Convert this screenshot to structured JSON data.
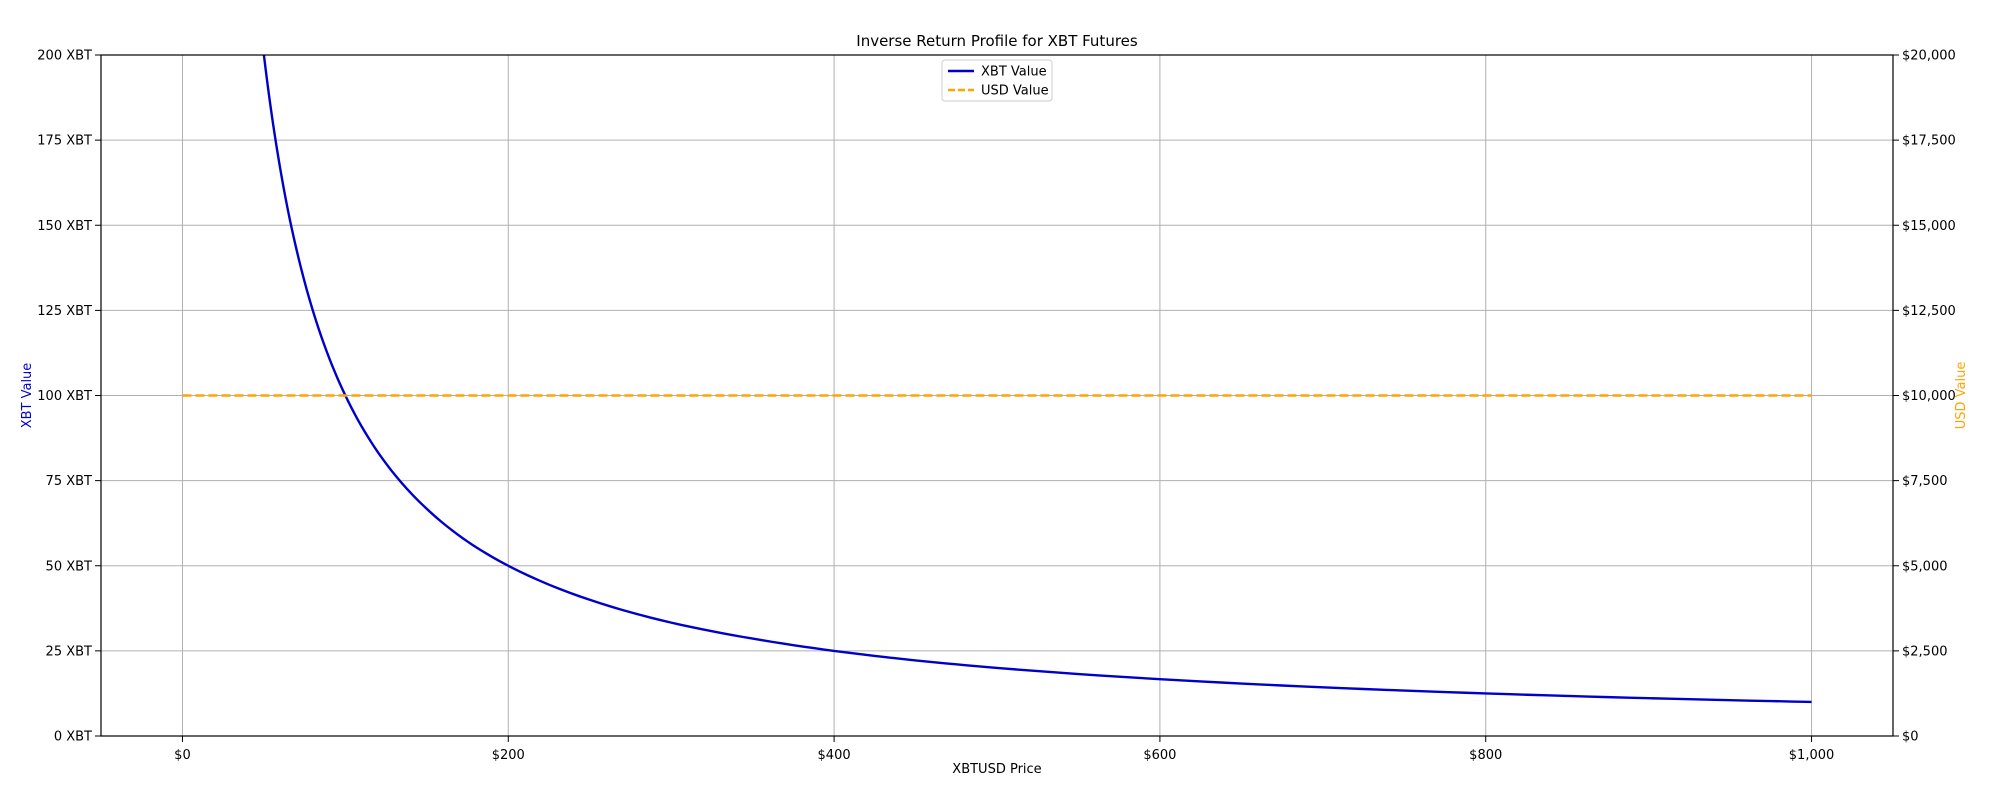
{
  "chart_data": {
    "type": "line",
    "title": "Inverse Return Profile for XBT Futures",
    "xlabel": "XBTUSD Price",
    "ylabel_left": "XBT Value",
    "ylabel_right": "USD Value",
    "xlim": [
      -50,
      1050
    ],
    "ylim_left": [
      0,
      200
    ],
    "ylim_right": [
      0,
      20000
    ],
    "grid": true,
    "legend_placement": "upper center",
    "x_tick_values": [
      0,
      200,
      400,
      600,
      800,
      1000
    ],
    "x_tick_labels": [
      "$0",
      "$200",
      "$400",
      "$600",
      "$800",
      "$1,000"
    ],
    "y_left_tick_values": [
      0,
      25,
      50,
      75,
      100,
      125,
      150,
      175,
      200
    ],
    "y_left_tick_labels": [
      "0 XBT",
      "25 XBT",
      "50 XBT",
      "75 XBT",
      "100 XBT",
      "125 XBT",
      "150 XBT",
      "175 XBT",
      "200 XBT"
    ],
    "y_right_tick_values": [
      0,
      2500,
      5000,
      7500,
      10000,
      12500,
      15000,
      17500,
      20000
    ],
    "y_right_tick_labels": [
      "$0",
      "$2,500",
      "$5,000",
      "$7,500",
      "$10,000",
      "$12,500",
      "$15,000",
      "$17,500",
      "$20,000"
    ],
    "series": [
      {
        "name": "XBT Value",
        "axis": "left",
        "color": "#0000cc",
        "style": "solid",
        "x": [
          50,
          55,
          60,
          65,
          70,
          80,
          90,
          100,
          110,
          125,
          150,
          175,
          200,
          250,
          300,
          350,
          400,
          450,
          500,
          600,
          700,
          800,
          900,
          1000
        ],
        "y": [
          200,
          181.8,
          166.7,
          153.8,
          142.9,
          125,
          111.1,
          100,
          90.9,
          80,
          66.7,
          57.1,
          50,
          40,
          33.3,
          28.6,
          25,
          22.2,
          20,
          16.7,
          14.3,
          12.5,
          11.1,
          10
        ]
      },
      {
        "name": "USD Value",
        "axis": "right",
        "color": "#ffa500",
        "style": "dashed",
        "x": [
          0,
          1000
        ],
        "y": [
          10000,
          10000
        ]
      }
    ]
  }
}
